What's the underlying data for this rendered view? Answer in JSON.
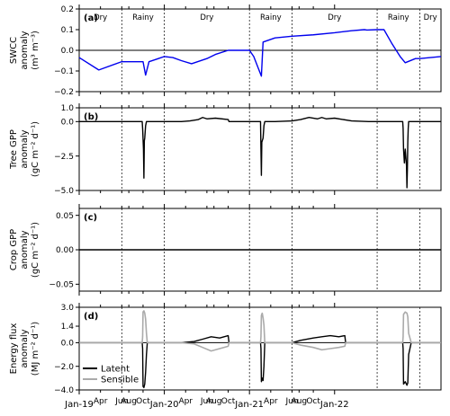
{
  "chart_data": [
    {
      "panel": "a",
      "panel_label": "(a)",
      "type": "line",
      "ylabel_lines": [
        "SWCC",
        "anomaly",
        "(m³ m⁻³)"
      ],
      "ylim": [
        -0.2,
        0.2
      ],
      "yticks": [
        -0.2,
        -0.1,
        0.0,
        0.1,
        0.2
      ],
      "ytick_labels": [
        "−0.2",
        "−0.1",
        "0.0",
        "0.1",
        "0.2"
      ],
      "zero_line": true,
      "seasons": [
        {
          "label": "Dry",
          "start": 0,
          "end": 0.5
        },
        {
          "label": "Rainy",
          "start": 0.5,
          "end": 1.0
        },
        {
          "label": "Dry",
          "start": 1.0,
          "end": 2.0
        },
        {
          "label": "Rainy",
          "start": 2.0,
          "end": 2.5
        },
        {
          "label": "Dry",
          "start": 2.5,
          "end": 3.5
        },
        {
          "label": "Rainy",
          "start": 3.5,
          "end": 4.0
        },
        {
          "label": "Dry",
          "start": 4.0,
          "end": 4.25
        }
      ],
      "series": [
        {
          "color": "#0000ee",
          "x": [
            0,
            0.23,
            0.5,
            0.75,
            0.78,
            0.82,
            0.93,
            1.0,
            1.1,
            1.2,
            1.32,
            1.5,
            1.6,
            1.75,
            2.0,
            2.05,
            2.14,
            2.16,
            2.3,
            2.5,
            2.75,
            3.0,
            3.2,
            3.35,
            3.38,
            3.5,
            3.58,
            3.67,
            3.77,
            3.83,
            3.95,
            4.0,
            4.25
          ],
          "y": [
            -0.035,
            -0.095,
            -0.055,
            -0.055,
            -0.12,
            -0.055,
            -0.04,
            -0.03,
            -0.035,
            -0.05,
            -0.065,
            -0.04,
            -0.02,
            0.0,
            0.0,
            -0.03,
            -0.125,
            0.04,
            0.06,
            0.068,
            0.075,
            0.085,
            0.095,
            0.1,
            0.098,
            0.1,
            0.1,
            0.035,
            -0.03,
            -0.06,
            -0.04,
            -0.04,
            -0.03
          ]
        }
      ]
    },
    {
      "panel": "b",
      "panel_label": "(b)",
      "type": "line",
      "ylabel_lines": [
        "Tree GPP",
        "anomaly",
        "(gC m⁻² d⁻¹)"
      ],
      "ylim": [
        -5.0,
        1.0
      ],
      "yticks": [
        -5.0,
        -2.5,
        0.0,
        1.0
      ],
      "ytick_labels": [
        "−5.0",
        "−2.5",
        "0.0",
        "1.0"
      ],
      "zero_line": false,
      "series": [
        {
          "color": "#000000",
          "x": [
            0,
            0.74,
            0.745,
            0.755,
            0.76,
            0.765,
            0.77,
            0.78,
            0.79,
            0.8,
            1.0,
            1.2,
            1.3,
            1.4,
            1.45,
            1.5,
            1.6,
            1.75,
            1.76,
            1.9,
            2.0,
            2.13,
            2.135,
            2.14,
            2.145,
            2.16,
            2.17,
            2.18,
            2.3,
            2.5,
            2.6,
            2.7,
            2.8,
            2.85,
            2.9,
            3.0,
            3.2,
            3.4,
            3.5,
            3.8,
            3.805,
            3.81,
            3.82,
            3.83,
            3.845,
            3.85,
            3.855,
            3.86,
            3.865,
            3.87,
            3.9,
            4.25
          ],
          "y": [
            0,
            0,
            -0.5,
            -2.0,
            -4.1,
            -1.4,
            -1.2,
            -0.3,
            0,
            0,
            0,
            0,
            0.05,
            0.15,
            0.3,
            0.2,
            0.25,
            0.15,
            0,
            0,
            0,
            0,
            -2.0,
            -3.9,
            -1.5,
            -1.2,
            -0.3,
            0,
            0,
            0.05,
            0.15,
            0.3,
            0.2,
            0.3,
            0.2,
            0.25,
            0.05,
            0,
            0,
            0,
            -0.5,
            -2.0,
            -3.0,
            -2.0,
            -3.2,
            -4.8,
            -3.5,
            -1.5,
            -0.5,
            0,
            0,
            0
          ]
        }
      ]
    },
    {
      "panel": "c",
      "panel_label": "(c)",
      "type": "line",
      "ylabel_lines": [
        "Crop GPP",
        "anomaly",
        "(gC m⁻² d⁻¹)"
      ],
      "ylim": [
        -0.06,
        0.06
      ],
      "yticks": [
        -0.05,
        0.0,
        0.05
      ],
      "ytick_labels": [
        "−0.05",
        "0.00",
        "0.05"
      ],
      "zero_line": false,
      "series": [
        {
          "color": "#000000",
          "x": [
            0,
            4.25
          ],
          "y": [
            0,
            0
          ]
        }
      ]
    },
    {
      "panel": "d",
      "panel_label": "(d)",
      "type": "line",
      "ylabel_lines": [
        "Energy flux",
        "anomaly",
        "(MJ m⁻² d⁻¹)"
      ],
      "ylim": [
        -4.0,
        3.0
      ],
      "yticks": [
        -4.0,
        -2.0,
        0.0,
        1.4,
        3.0
      ],
      "ytick_labels": [
        "−4.0",
        "−2.0",
        "0.0",
        "1.4",
        "3.0"
      ],
      "zero_line": true,
      "legend": [
        "Latent",
        "Sensible"
      ],
      "legend_loc": "lower-left",
      "series": [
        {
          "name": "Latent",
          "color": "#000000",
          "x": [
            0,
            0.74,
            0.745,
            0.75,
            0.76,
            0.77,
            0.78,
            0.79,
            0.8,
            1.0,
            1.2,
            1.35,
            1.45,
            1.55,
            1.65,
            1.75,
            1.76,
            1.8,
            2.0,
            2.13,
            2.135,
            2.14,
            2.15,
            2.16,
            2.17,
            2.18,
            2.3,
            2.5,
            2.6,
            2.75,
            2.85,
            2.95,
            3.05,
            3.12,
            3.13,
            3.2,
            3.5,
            3.8,
            3.805,
            3.81,
            3.83,
            3.85,
            3.86,
            3.87,
            3.9,
            4.25
          ],
          "y": [
            0,
            0,
            -0.5,
            -3.7,
            -3.8,
            -3.5,
            -2.5,
            -1.0,
            0,
            0,
            0,
            0.1,
            0.3,
            0.5,
            0.4,
            0.6,
            0,
            0,
            0,
            0,
            -0.5,
            -3.3,
            -3.0,
            -3.2,
            -2.0,
            0,
            0,
            0,
            0.2,
            0.4,
            0.5,
            0.6,
            0.5,
            0.6,
            0,
            0,
            0,
            0,
            -0.5,
            -3.5,
            -3.3,
            -3.6,
            -3.4,
            -1.0,
            0,
            0
          ]
        },
        {
          "name": "Sensible",
          "color": "#aaaaaa",
          "x": [
            0,
            0.74,
            0.745,
            0.75,
            0.76,
            0.77,
            0.78,
            0.79,
            0.8,
            1.0,
            1.2,
            1.35,
            1.45,
            1.55,
            1.65,
            1.75,
            1.76,
            1.8,
            2.0,
            2.13,
            2.135,
            2.14,
            2.15,
            2.16,
            2.17,
            2.18,
            2.3,
            2.5,
            2.6,
            2.75,
            2.85,
            2.95,
            3.05,
            3.12,
            3.13,
            3.2,
            3.5,
            3.8,
            3.805,
            3.81,
            3.83,
            3.85,
            3.86,
            3.87,
            3.9,
            4.25
          ],
          "y": [
            0,
            0,
            0.5,
            2.6,
            2.7,
            2.5,
            2.0,
            0.8,
            0,
            0,
            0,
            -0.1,
            -0.4,
            -0.7,
            -0.5,
            -0.3,
            0,
            0,
            0,
            0,
            0.5,
            2.3,
            2.5,
            2.1,
            1.5,
            0,
            0,
            0,
            -0.2,
            -0.4,
            -0.6,
            -0.5,
            -0.4,
            -0.3,
            0,
            0,
            0,
            0,
            0.5,
            2.4,
            2.6,
            2.5,
            2.2,
            0.8,
            0,
            0
          ]
        }
      ]
    }
  ],
  "x_axis": {
    "unit": "years since Jan-19",
    "xlim": [
      0,
      4.25
    ],
    "ticks": [
      {
        "x": 0.0,
        "label": "Jan-19",
        "major": true
      },
      {
        "x": 0.25,
        "label": "Apr",
        "major": false
      },
      {
        "x": 0.5,
        "label": "Jun",
        "major": false
      },
      {
        "x": 0.583,
        "label": "Aug",
        "major": false
      },
      {
        "x": 0.75,
        "label": "Oct",
        "major": false
      },
      {
        "x": 1.0,
        "label": "Jan-20",
        "major": true
      },
      {
        "x": 1.25,
        "label": "Apr",
        "major": false
      },
      {
        "x": 1.5,
        "label": "Jun",
        "major": false
      },
      {
        "x": 1.583,
        "label": "Aug",
        "major": false
      },
      {
        "x": 1.75,
        "label": "Oct",
        "major": false
      },
      {
        "x": 2.0,
        "label": "Jan-21",
        "major": true
      },
      {
        "x": 2.25,
        "label": "Apr",
        "major": false
      },
      {
        "x": 2.5,
        "label": "Jun",
        "major": false
      },
      {
        "x": 2.583,
        "label": "Aug",
        "major": false
      },
      {
        "x": 2.75,
        "label": "Oct",
        "major": false
      },
      {
        "x": 3.0,
        "label": "Jan-22",
        "major": true
      }
    ],
    "season_boundaries": [
      0.5,
      1.0,
      2.0,
      2.5,
      3.5,
      4.0
    ]
  }
}
